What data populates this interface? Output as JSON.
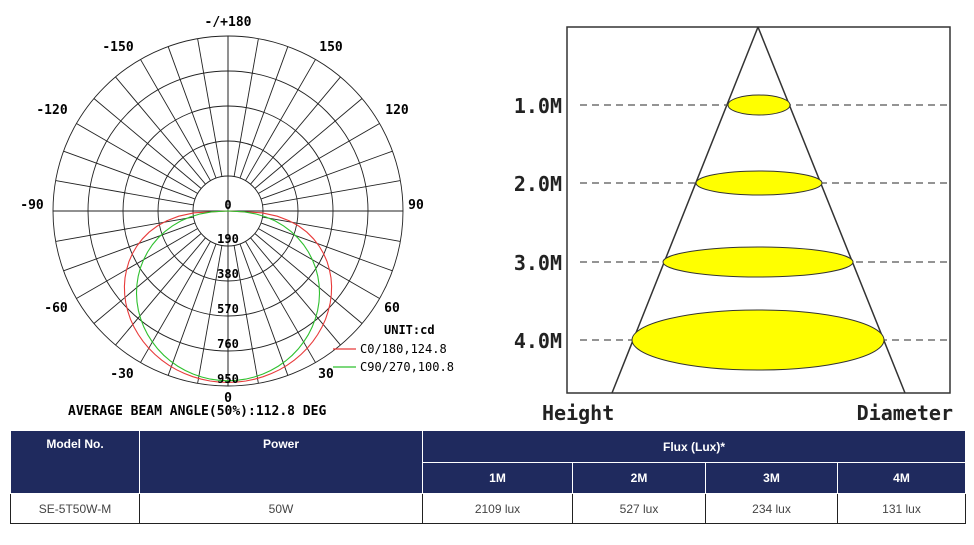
{
  "polar": {
    "angle_labels": {
      "top": "-/+180",
      "n150": "-150",
      "p150": "150",
      "n120": "-120",
      "p120": "120",
      "n90": "-90",
      "p90": "90",
      "n60": "-60",
      "p60": "60",
      "n30": "-30",
      "p30": "30",
      "bottom": "0"
    },
    "center_label": "0",
    "radial_labels": [
      "190",
      "380",
      "570",
      "760",
      "950"
    ],
    "unit": "UNIT:cd",
    "legend": [
      {
        "label": "C0/180,124.8",
        "color": "#e83a3a"
      },
      {
        "label": "C90/270,100.8",
        "color": "#2ec02e"
      }
    ],
    "caption": "AVERAGE BEAM ANGLE(50%):112.8 DEG"
  },
  "cone": {
    "levels": [
      "1.0M",
      "2.0M",
      "3.0M",
      "4.0M"
    ],
    "height_label": "Height",
    "diameter_label": "Diameter",
    "spot_color": "#ffff00"
  },
  "table": {
    "headers": {
      "model": "Model No.",
      "power": "Power",
      "flux": "Flux (Lux)*",
      "sub": [
        "1M",
        "2M",
        "3M",
        "4M"
      ]
    },
    "row": {
      "model": "SE-5T50W-M",
      "power": "50W",
      "values": [
        "2109 lux",
        "527 lux",
        "234 lux",
        "131 lux"
      ]
    },
    "header_color": "#1f2a5e"
  }
}
